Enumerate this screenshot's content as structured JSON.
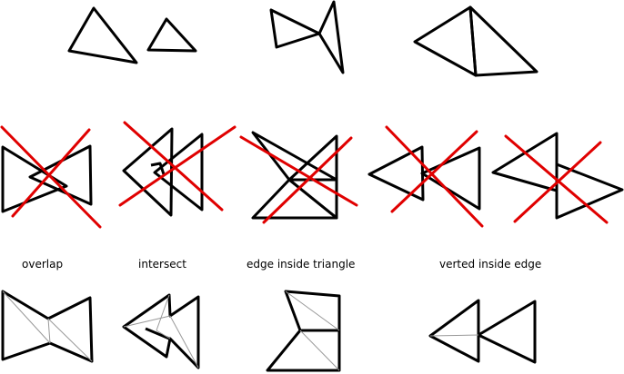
{
  "labels": {
    "overlap": "overlap",
    "intersect": "intersect",
    "edge_inside_triangle": "edge inside triangle",
    "verted_inside_edge": "verted inside edge"
  },
  "colors": {
    "stroke": "#000000",
    "cross": "#e00000",
    "triangulation": "#999999",
    "background": "#ffffff"
  }
}
